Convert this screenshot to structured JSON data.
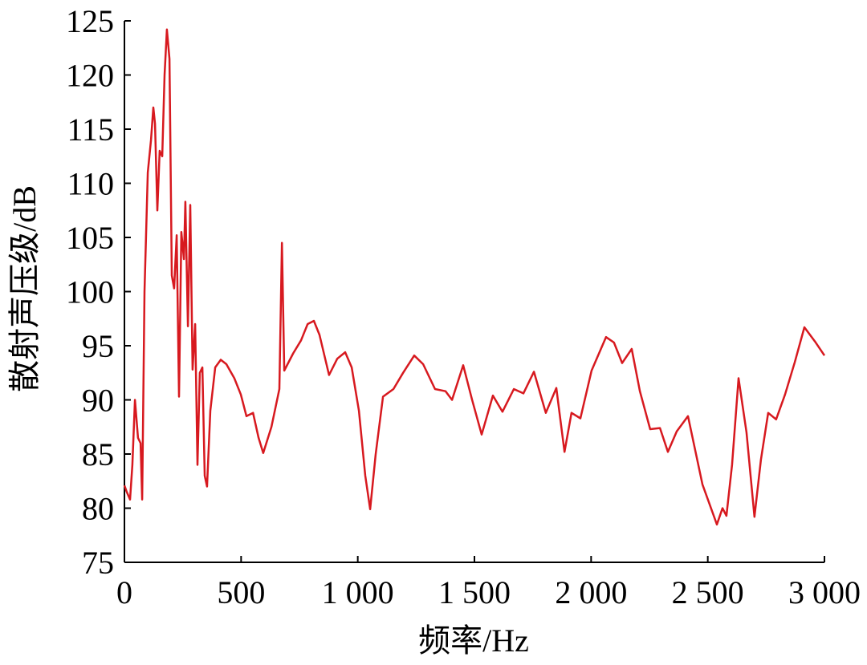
{
  "chart_data": {
    "type": "line",
    "xlabel": "频率/Hz",
    "ylabel": "散射声压级/dB",
    "color": "#d7191f",
    "xlim": [
      0,
      3000
    ],
    "ylim": [
      75,
      125
    ],
    "xticks": [
      0,
      500,
      {
        "value": 1000,
        "label": "1 000"
      },
      {
        "value": 1500,
        "label": "1 500"
      },
      {
        "value": 2000,
        "label": "2 000"
      },
      {
        "value": 2500,
        "label": "2 500"
      },
      {
        "value": 3000,
        "label": "3 000"
      }
    ],
    "yticks": [
      75,
      80,
      85,
      90,
      95,
      100,
      105,
      110,
      115,
      120,
      125
    ],
    "x": [
      0,
      10,
      24,
      34,
      45,
      58,
      69,
      76,
      86,
      100,
      114,
      124,
      131,
      141,
      151,
      162,
      172,
      182,
      193,
      203,
      213,
      224,
      234,
      244,
      255,
      261,
      272,
      282,
      292,
      303,
      313,
      323,
      334,
      344,
      354,
      368,
      389,
      413,
      437,
      471,
      499,
      523,
      551,
      575,
      595,
      630,
      664,
      675,
      685,
      723,
      757,
      785,
      812,
      836,
      877,
      912,
      946,
      974,
      1005,
      1032,
      1053,
      1077,
      1108,
      1153,
      1194,
      1242,
      1280,
      1331,
      1376,
      1404,
      1452,
      1490,
      1531,
      1579,
      1620,
      1669,
      1710,
      1755,
      1806,
      1851,
      1886,
      1916,
      1954,
      2002,
      2064,
      2098,
      2133,
      2174,
      2209,
      2253,
      2295,
      2329,
      2367,
      2415,
      2477,
      2539,
      2563,
      2580,
      2604,
      2632,
      2666,
      2700,
      2728,
      2759,
      2793,
      2831,
      2873,
      2914,
      2959,
      3000
    ],
    "values": [
      82.1,
      81.5,
      80.8,
      84,
      90,
      86.5,
      86,
      80.8,
      100,
      111,
      114,
      117,
      115.5,
      107.5,
      113,
      112.5,
      120,
      124.2,
      121.5,
      101.5,
      100.3,
      105.2,
      90.3,
      105.5,
      103,
      108.3,
      96.8,
      108,
      92.8,
      97,
      84,
      92.5,
      93,
      83,
      82,
      89,
      93,
      93.7,
      93.3,
      92,
      90.5,
      88.5,
      88.8,
      86.5,
      85.1,
      87.5,
      91,
      104.5,
      92.7,
      94.3,
      95.5,
      97,
      97.3,
      96,
      92.3,
      93.8,
      94.4,
      93,
      89,
      83,
      79.9,
      85,
      90.3,
      91,
      92.5,
      94.1,
      93.3,
      91,
      90.8,
      90,
      93.2,
      90,
      86.8,
      90.4,
      88.9,
      91,
      90.6,
      92.6,
      88.8,
      91.1,
      85.2,
      88.8,
      88.3,
      92.7,
      95.8,
      95.3,
      93.4,
      94.7,
      90.8,
      87.3,
      87.4,
      85.2,
      87.1,
      88.5,
      82.2,
      78.5,
      80,
      79.3,
      84,
      92,
      87,
      79.2,
      84.5,
      88.8,
      88.2,
      90.5,
      93.5,
      96.7,
      95.4,
      94.1
    ]
  }
}
